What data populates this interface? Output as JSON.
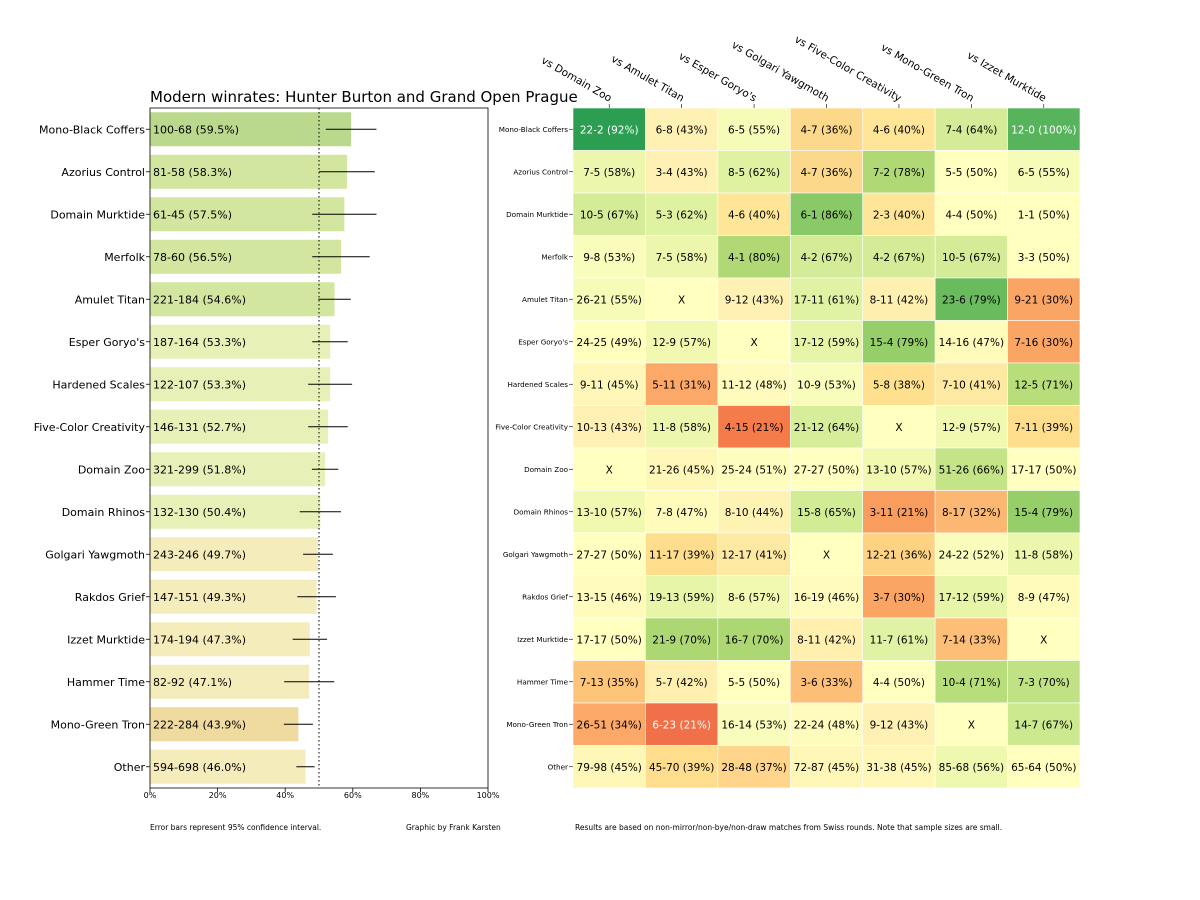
{
  "footnotes": {
    "error_bars": "Error bars represent 95% confidence interval.",
    "credit": "Graphic by Frank Karsten",
    "results": "Results are based on non-mirror/non-bye/non-draw matches from Swiss rounds. Note that sample sizes are small."
  },
  "chart_data": [
    {
      "type": "bar",
      "orientation": "horizontal",
      "title": "Modern winrates: Hunter Burton and Grand Open Prague",
      "categories": [
        "Mono-Black Coffers",
        "Azorius Control",
        "Domain Murktide",
        "Merfolk",
        "Amulet Titan",
        "Esper Goryo's",
        "Hardened Scales",
        "Five-Color Creativity",
        "Domain Zoo",
        "Domain Rhinos",
        "Golgari Yawgmoth",
        "Rakdos Grief",
        "Izzet Murktide",
        "Hammer Time",
        "Mono-Green Tron",
        "Other"
      ],
      "values": [
        59.5,
        58.3,
        57.5,
        56.5,
        54.6,
        53.3,
        53.3,
        52.7,
        51.8,
        50.4,
        49.7,
        49.3,
        47.3,
        47.1,
        43.9,
        46.0
      ],
      "bar_labels": [
        "100-68 (59.5%)",
        "81-58 (58.3%)",
        "61-45 (57.5%)",
        "78-60 (56.5%)",
        "221-184 (54.6%)",
        "187-164 (53.3%)",
        "122-107 (53.3%)",
        "146-131 (52.7%)",
        "321-299 (51.8%)",
        "132-130 (50.4%)",
        "243-246 (49.7%)",
        "147-151 (49.3%)",
        "174-194 (47.3%)",
        "82-92 (47.1%)",
        "222-284 (43.9%)",
        "594-698 (46.0%)"
      ],
      "ci_low": [
        52.0,
        50.0,
        48.0,
        48.0,
        49.8,
        48.0,
        46.8,
        46.8,
        47.9,
        44.3,
        45.3,
        43.6,
        42.2,
        39.7,
        39.6,
        43.3
      ],
      "ci_high": [
        67.0,
        66.5,
        67.0,
        65.0,
        59.4,
        58.5,
        59.8,
        58.5,
        55.7,
        56.5,
        54.1,
        55.0,
        52.4,
        54.5,
        48.2,
        48.7
      ],
      "xlim": [
        0,
        100
      ],
      "x_ticks": [
        "0%",
        "20%",
        "40%",
        "60%",
        "80%",
        "100%"
      ],
      "reference_line": 50,
      "bar_colors": [
        "#bbd98c",
        "#d3e69f",
        "#d3e69f",
        "#d3e69f",
        "#d3e69f",
        "#e6f0b7",
        "#e6f0b7",
        "#e6f0b7",
        "#e6f0b7",
        "#e6f0b7",
        "#f4ecbb",
        "#f4ecbb",
        "#f4ecbb",
        "#f4ecbb",
        "#efdaa0",
        "#f4ecbb"
      ]
    },
    {
      "type": "heatmap",
      "columns": [
        "vs Domain Zoo",
        "vs Amulet Titan",
        "vs Esper Goryo's",
        "vs Golgari Yawgmoth",
        "vs Five-Color Creativity",
        "vs Mono-Green Tron",
        "vs Izzet Murktide"
      ],
      "rows": [
        "Mono-Black Coffers",
        "Azorius Control",
        "Domain Murktide",
        "Merfolk",
        "Amulet Titan",
        "Esper Goryo's",
        "Hardened Scales",
        "Five-Color Creativity",
        "Domain Zoo",
        "Domain Rhinos",
        "Golgari Yawgmoth",
        "Rakdos Grief",
        "Izzet Murktide",
        "Hammer Time",
        "Mono-Green Tron",
        "Other"
      ],
      "cells": [
        [
          "22-2 (92%)",
          "6-8 (43%)",
          "6-5 (55%)",
          "4-7 (36%)",
          "4-6 (40%)",
          "7-4 (64%)",
          "12-0 (100%)"
        ],
        [
          "7-5 (58%)",
          "3-4 (43%)",
          "8-5 (62%)",
          "4-7 (36%)",
          "7-2 (78%)",
          "5-5 (50%)",
          "6-5 (55%)"
        ],
        [
          "10-5 (67%)",
          "5-3 (62%)",
          "4-6 (40%)",
          "6-1 (86%)",
          "2-3 (40%)",
          "4-4 (50%)",
          "1-1 (50%)"
        ],
        [
          "9-8 (53%)",
          "7-5 (58%)",
          "4-1 (80%)",
          "4-2 (67%)",
          "4-2 (67%)",
          "10-5 (67%)",
          "3-3 (50%)"
        ],
        [
          "26-21 (55%)",
          "X",
          "9-12 (43%)",
          "17-11 (61%)",
          "8-11 (42%)",
          "23-6 (79%)",
          "9-21 (30%)"
        ],
        [
          "24-25 (49%)",
          "12-9 (57%)",
          "X",
          "17-12 (59%)",
          "15-4 (79%)",
          "14-16 (47%)",
          "7-16 (30%)"
        ],
        [
          "9-11 (45%)",
          "5-11 (31%)",
          "11-12 (48%)",
          "10-9 (53%)",
          "5-8 (38%)",
          "7-10 (41%)",
          "12-5 (71%)"
        ],
        [
          "10-13 (43%)",
          "11-8 (58%)",
          "4-15 (21%)",
          "21-12 (64%)",
          "X",
          "12-9 (57%)",
          "7-11 (39%)"
        ],
        [
          "X",
          "21-26 (45%)",
          "25-24 (51%)",
          "27-27 (50%)",
          "13-10 (57%)",
          "51-26 (66%)",
          "17-17 (50%)"
        ],
        [
          "13-10 (57%)",
          "7-8 (47%)",
          "8-10 (44%)",
          "15-8 (65%)",
          "3-11 (21%)",
          "8-17 (32%)",
          "15-4 (79%)"
        ],
        [
          "27-27 (50%)",
          "11-17 (39%)",
          "12-17 (41%)",
          "X",
          "12-21 (36%)",
          "24-22 (52%)",
          "11-8 (58%)"
        ],
        [
          "13-15 (46%)",
          "19-13 (59%)",
          "8-6 (57%)",
          "16-19 (46%)",
          "3-7 (30%)",
          "17-12 (59%)",
          "8-9 (47%)"
        ],
        [
          "17-17 (50%)",
          "21-9 (70%)",
          "16-7 (70%)",
          "8-11 (42%)",
          "11-7 (61%)",
          "7-14 (33%)",
          "X"
        ],
        [
          "7-13 (35%)",
          "5-7 (42%)",
          "5-5 (50%)",
          "3-6 (33%)",
          "4-4 (50%)",
          "10-4 (71%)",
          "7-3 (70%)"
        ],
        [
          "26-51 (34%)",
          "6-23 (21%)",
          "16-14 (53%)",
          "22-24 (48%)",
          "9-12 (43%)",
          "X",
          "14-7 (67%)"
        ],
        [
          "79-98 (45%)",
          "45-70 (39%)",
          "28-48 (37%)",
          "72-87 (45%)",
          "31-38 (45%)",
          "85-68 (56%)",
          "65-64 (50%)"
        ]
      ],
      "values": [
        [
          92,
          43,
          55,
          36,
          40,
          64,
          100
        ],
        [
          58,
          43,
          62,
          36,
          78,
          50,
          55
        ],
        [
          67,
          62,
          40,
          86,
          40,
          50,
          50
        ],
        [
          53,
          58,
          80,
          67,
          67,
          67,
          50
        ],
        [
          55,
          null,
          43,
          61,
          42,
          79,
          30
        ],
        [
          49,
          57,
          null,
          59,
          79,
          47,
          30
        ],
        [
          45,
          31,
          48,
          53,
          38,
          41,
          71
        ],
        [
          43,
          58,
          21,
          64,
          null,
          57,
          39
        ],
        [
          null,
          45,
          51,
          50,
          57,
          66,
          50
        ],
        [
          57,
          47,
          44,
          65,
          21,
          32,
          79
        ],
        [
          50,
          39,
          41,
          null,
          36,
          52,
          58
        ],
        [
          46,
          59,
          57,
          46,
          30,
          59,
          47
        ],
        [
          50,
          70,
          70,
          42,
          61,
          33,
          null
        ],
        [
          35,
          42,
          50,
          33,
          50,
          71,
          70
        ],
        [
          34,
          21,
          53,
          48,
          43,
          null,
          67
        ],
        [
          45,
          39,
          37,
          45,
          45,
          56,
          50
        ]
      ],
      "cell_colors": [
        [
          "#2b9e52",
          "#fff1b3",
          "#f6fbb8",
          "#fcd98a",
          "#fee597",
          "#d4ec97",
          "#57b45d"
        ],
        [
          "#ecf7ad",
          "#fff1b3",
          "#dff2a2",
          "#fcd98a",
          "#b0d976",
          "#ffffbf",
          "#f6fbb8"
        ],
        [
          "#d4ec97",
          "#dff2a2",
          "#fee597",
          "#8ac967",
          "#fee597",
          "#ffffbf",
          "#ffffbf"
        ],
        [
          "#fafcbb",
          "#ecf7ad",
          "#b0d976",
          "#d4ec97",
          "#d4ec97",
          "#d4ec97",
          "#ffffbf"
        ],
        [
          "#f6fbb8",
          "#ffffbf",
          "#fff1b3",
          "#e0f3a4",
          "#fff0b0",
          "#6aba5e",
          "#fba565"
        ],
        [
          "#ffffbe",
          "#f1f9b1",
          "#ffffbf",
          "#e7f5a8",
          "#96cf6a",
          "#fffbbb",
          "#fba565"
        ],
        [
          "#fff7b8",
          "#fca868",
          "#fffbbc",
          "#fafcbb",
          "#fee08f",
          "#fee9a2",
          "#b8dd7b"
        ],
        [
          "#fff1b3",
          "#ecf7ad",
          "#f57b4b",
          "#d6ee99",
          "#ffffbf",
          "#f1f9b1",
          "#fedd8d"
        ],
        [
          "#ffffbf",
          "#fff7b8",
          "#fdfebd",
          "#ffffbf",
          "#f1f9b1",
          "#c4e487",
          "#ffffbf"
        ],
        [
          "#f1f9b1",
          "#fffbbb",
          "#fff3b4",
          "#d1ec94",
          "#f89d5e",
          "#fcb772",
          "#96cf6a"
        ],
        [
          "#ffffbf",
          "#fedd8d",
          "#fee9a2",
          "#ffffbf",
          "#fdd283",
          "#f9fcbb",
          "#ecf7ad"
        ],
        [
          "#fffbbc",
          "#e7f5a8",
          "#f1f9b1",
          "#fffbbc",
          "#fba565",
          "#e7f5a8",
          "#fffbbb"
        ],
        [
          "#ffffbf",
          "#acd772",
          "#acd772",
          "#fff0b0",
          "#e0f3a4",
          "#fdbf77",
          "#ffffbf"
        ],
        [
          "#fdc47a",
          "#fff0b0",
          "#ffffbf",
          "#fdbf77",
          "#ffffbf",
          "#b8dd7b",
          "#c0e184"
        ],
        [
          "#fca868",
          "#f0704a",
          "#fafcbb",
          "#fffbbd",
          "#fff1b3",
          "#ffffbf",
          "#cce990"
        ],
        [
          "#fff7b8",
          "#fedd8d",
          "#fed58a",
          "#fff7b8",
          "#fff7b8",
          "#eef8af",
          "#ffffbf"
        ]
      ],
      "light_text_cells": [
        [
          0,
          0
        ],
        [
          0,
          6
        ],
        [
          14,
          1
        ]
      ]
    }
  ]
}
